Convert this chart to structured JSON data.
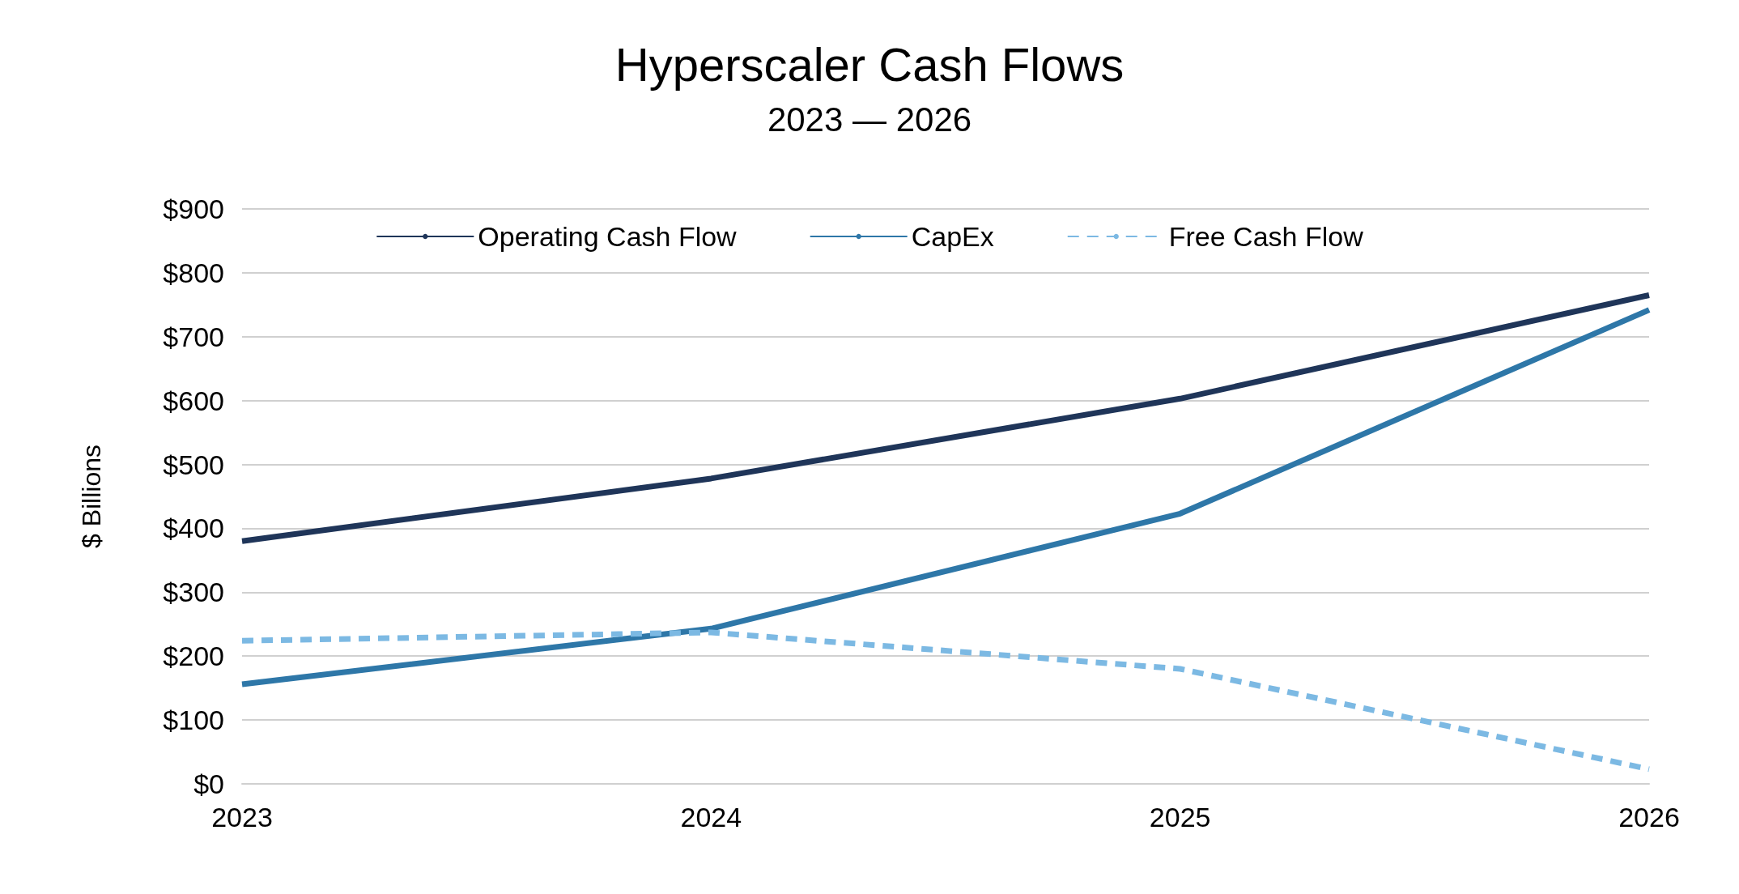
{
  "chart_data": {
    "type": "line",
    "title": "Hyperscaler Cash Flows",
    "subtitle": "2023 — 2026",
    "ylabel": "$ Billions",
    "categories": [
      "2023",
      "2024",
      "2025",
      "2026"
    ],
    "series": [
      {
        "name": "Operating Cash Flow",
        "color": "#1f3559",
        "line_style": "solid",
        "values": [
          380,
          478,
          603,
          765
        ]
      },
      {
        "name": "CapEx",
        "color": "#2e77a8",
        "line_style": "solid",
        "values": [
          156,
          243,
          423,
          742
        ]
      },
      {
        "name": "Free Cash Flow",
        "color": "#7cb9e3",
        "line_style": "dashed",
        "values": [
          224,
          237,
          180,
          23
        ]
      }
    ],
    "ylim": [
      0,
      900
    ],
    "yticks": [
      {
        "value": 0,
        "label": "$0"
      },
      {
        "value": 100,
        "label": "$100"
      },
      {
        "value": 200,
        "label": "$200"
      },
      {
        "value": 300,
        "label": "$300"
      },
      {
        "value": 400,
        "label": "$400"
      },
      {
        "value": 500,
        "label": "$500"
      },
      {
        "value": 600,
        "label": "$600"
      },
      {
        "value": 700,
        "label": "$700"
      },
      {
        "value": 800,
        "label": "$800"
      },
      {
        "value": 900,
        "label": "$900"
      }
    ],
    "grid": "y",
    "legend": "top",
    "marker": "none"
  }
}
